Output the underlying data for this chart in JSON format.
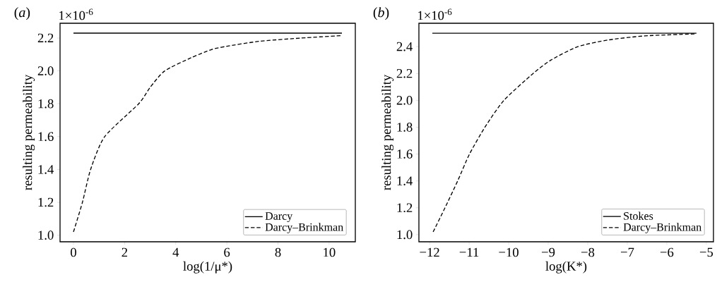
{
  "chart_data": [
    {
      "type": "line",
      "title": "(*a*)",
      "xlabel": "log(1/μ*)",
      "ylabel": "resulting permeability",
      "annotations": [
        "1×10$^{-6}$"
      ],
      "legend": "bottom right",
      "xlim": [
        -0.525,
        11.025
      ],
      "ylim": [
        0.96,
        2.29
      ],
      "xticks": [
        0,
        2,
        4,
        6,
        8,
        10
      ],
      "yticks": [
        {
          "value": 1.0,
          "label": "1.0"
        },
        {
          "value": 1.2,
          "label": "1.2"
        },
        {
          "value": 1.4,
          "label": "1.4"
        },
        {
          "value": 1.6,
          "label": "1.6"
        },
        {
          "value": 1.8,
          "label": "1.8"
        },
        {
          "value": 2.0,
          "label": "2.0"
        },
        {
          "value": 2.2,
          "label": "2.2"
        }
      ],
      "series": [
        {
          "name": "Darcy",
          "color": "#000000",
          "line_style": "solid",
          "x": [
            0,
            10.5
          ],
          "values": [
            2.23,
            2.23
          ]
        },
        {
          "name": "Darcy–Brinkman",
          "color": "#000000",
          "line_style": "dashed",
          "x": [
            0,
            0.35,
            0.67,
            1.22,
            2.55,
            3.0,
            3.57,
            4.6,
            5.4,
            6.0,
            7.26,
            8.9,
            10.5
          ],
          "values": [
            1.02,
            1.2,
            1.4,
            1.6,
            1.8,
            1.9,
            2.0,
            2.08,
            2.13,
            2.15,
            2.18,
            2.2,
            2.215
          ]
        }
      ]
    },
    {
      "type": "line",
      "title": "(*b*)",
      "xlabel": "log(K*)",
      "ylabel": "resulting permeability",
      "annotations": [
        "1×10$^{-6}$"
      ],
      "legend": "bottom right",
      "xlim": [
        -12.27,
        -4.82
      ],
      "ylim": [
        0.947,
        2.574
      ],
      "xticks": [
        {
          "value": -12,
          "label": "−12"
        },
        {
          "value": -11,
          "label": "−11"
        },
        {
          "value": -10,
          "label": "−10"
        },
        {
          "value": -9,
          "label": "−9"
        },
        {
          "value": -8,
          "label": "−8"
        },
        {
          "value": -7,
          "label": "−7"
        },
        {
          "value": -6,
          "label": "−6"
        },
        {
          "value": -5,
          "label": "−5"
        }
      ],
      "yticks": [
        {
          "value": 1.0,
          "label": "1.0"
        },
        {
          "value": 1.2,
          "label": "1.2"
        },
        {
          "value": 1.4,
          "label": "1.4"
        },
        {
          "value": 1.6,
          "label": "1.6"
        },
        {
          "value": 1.8,
          "label": "1.8"
        },
        {
          "value": 2.0,
          "label": "2.0"
        },
        {
          "value": 2.2,
          "label": "2.2"
        },
        {
          "value": 2.4,
          "label": "2.4"
        }
      ],
      "series": [
        {
          "name": "Stokes",
          "color": "#000000",
          "line_style": "solid",
          "x": [
            -11.93,
            -5.25
          ],
          "values": [
            2.5,
            2.5
          ]
        },
        {
          "name": "Darcy–Brinkman",
          "color": "#000000",
          "line_style": "dashed",
          "x": [
            -11.91,
            -11.61,
            -11.29,
            -10.99,
            -10.6,
            -10.12,
            -9.38,
            -8.93,
            -8.25,
            -7.47,
            -6.55,
            -5.25
          ],
          "values": [
            1.02,
            1.2,
            1.4,
            1.6,
            1.8,
            2.0,
            2.2,
            2.3,
            2.4,
            2.45,
            2.48,
            2.495
          ]
        }
      ]
    }
  ]
}
